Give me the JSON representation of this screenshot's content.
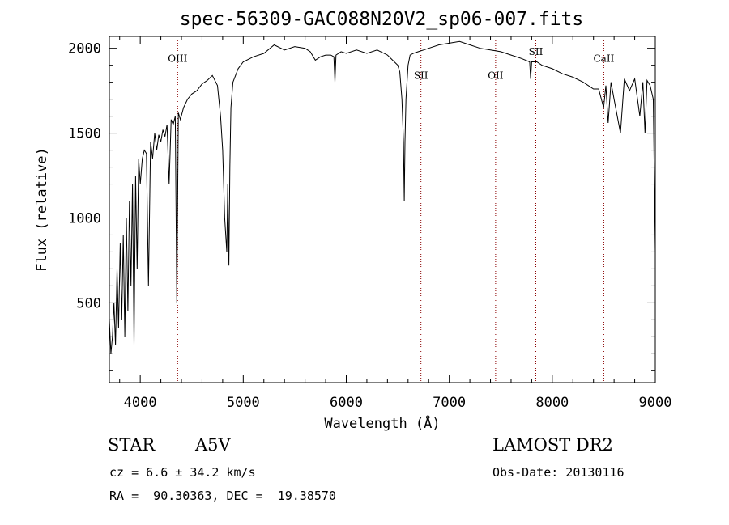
{
  "chart_data": {
    "type": "line",
    "title": "spec-56309-GAC088N20V2_sp06-007.fits",
    "xlabel": "Wavelength (Å)",
    "ylabel": "Flux (relative)",
    "xlim": [
      3700,
      9000
    ],
    "ylim": [
      30,
      2070
    ],
    "xticks": [
      4000,
      5000,
      6000,
      7000,
      8000,
      9000
    ],
    "yticks": [
      500,
      1000,
      1500,
      2000
    ],
    "grid": false,
    "series": [
      {
        "x": [
          3700,
          3715,
          3730,
          3745,
          3760,
          3775,
          3790,
          3805,
          3820,
          3835,
          3850,
          3865,
          3880,
          3895,
          3910,
          3925,
          3940,
          3955,
          3970,
          3985,
          4000,
          4020,
          4040,
          4060,
          4080,
          4100,
          4120,
          4140,
          4160,
          4180,
          4200,
          4220,
          4240,
          4260,
          4280,
          4300,
          4320,
          4340,
          4355,
          4370,
          4390,
          4420,
          4460,
          4500,
          4550,
          4600,
          4650,
          4700,
          4750,
          4780,
          4800,
          4820,
          4840,
          4850,
          4861,
          4870,
          4880,
          4900,
          4950,
          5000,
          5100,
          5200,
          5300,
          5400,
          5500,
          5600,
          5650,
          5700,
          5750,
          5800,
          5850,
          5880,
          5890,
          5900,
          5950,
          6000,
          6100,
          6200,
          6300,
          6400,
          6450,
          6500,
          6520,
          6540,
          6555,
          6563,
          6570,
          6580,
          6600,
          6620,
          6650,
          6700,
          6750,
          6800,
          6900,
          7000,
          7100,
          7200,
          7300,
          7400,
          7500,
          7600,
          7700,
          7780,
          7790,
          7800,
          7850,
          7900,
          8000,
          8100,
          8200,
          8300,
          8400,
          8450,
          8498,
          8520,
          8542,
          8570,
          8600,
          8662,
          8700,
          8750,
          8800,
          8850,
          8880,
          8900,
          8920,
          8950,
          8980,
          9000
        ],
        "y": [
          400,
          200,
          300,
          500,
          250,
          700,
          350,
          850,
          400,
          900,
          300,
          1000,
          450,
          1100,
          600,
          1200,
          250,
          1250,
          700,
          1350,
          1200,
          1350,
          1400,
          1380,
          600,
          1450,
          1350,
          1500,
          1400,
          1490,
          1450,
          1520,
          1480,
          1550,
          1200,
          1580,
          1550,
          1600,
          500,
          1620,
          1580,
          1650,
          1700,
          1730,
          1750,
          1790,
          1810,
          1840,
          1780,
          1600,
          1400,
          1000,
          800,
          1200,
          720,
          1300,
          1650,
          1800,
          1880,
          1920,
          1950,
          1970,
          2020,
          1990,
          2010,
          2000,
          1980,
          1930,
          1950,
          1960,
          1960,
          1950,
          1800,
          1960,
          1980,
          1970,
          1990,
          1970,
          1990,
          1960,
          1930,
          1900,
          1860,
          1700,
          1450,
          1100,
          1450,
          1700,
          1900,
          1960,
          1970,
          1980,
          1990,
          2000,
          2020,
          2030,
          2040,
          2020,
          2000,
          1990,
          1980,
          1960,
          1940,
          1920,
          1820,
          1920,
          1920,
          1900,
          1880,
          1850,
          1830,
          1800,
          1760,
          1760,
          1650,
          1780,
          1560,
          1800,
          1700,
          1500,
          1820,
          1750,
          1820,
          1600,
          1800,
          1500,
          1810,
          1780,
          1700,
          800
        ]
      }
    ],
    "annotations": [
      {
        "label": "OIII",
        "x": 4363,
        "label_flux": 1920
      },
      {
        "label": "SII",
        "x": 6725,
        "label_flux": 1820
      },
      {
        "label": "OII",
        "x": 7450,
        "label_flux": 1820
      },
      {
        "label": "SII",
        "x": 7840,
        "label_flux": 1960
      },
      {
        "label": "CaII",
        "x": 8500,
        "label_flux": 1920
      }
    ]
  },
  "object": {
    "class": "STAR",
    "subclass": "A5V",
    "redshift": "cz = 6.6 ± 34.2 km/s",
    "coords": "RA =  90.30363, DEC =  19.38570"
  },
  "survey": {
    "name": "LAMOST DR2",
    "obs_date": "Obs-Date: 20130116"
  },
  "colors": {
    "line": "#000000",
    "annotation": "#8b0000"
  }
}
